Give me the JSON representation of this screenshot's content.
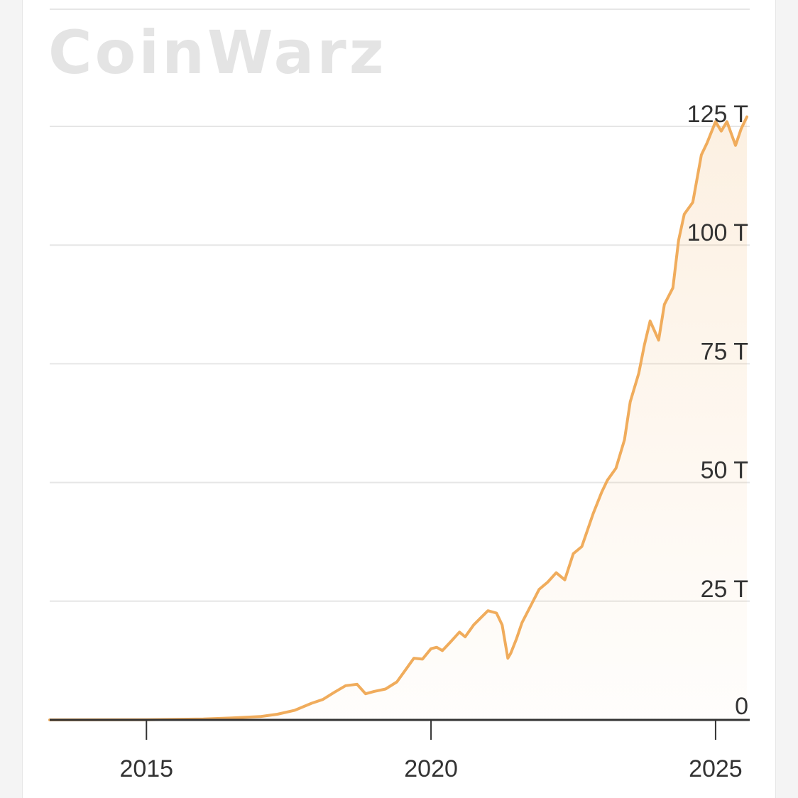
{
  "watermark": "CoinWarz",
  "colors": {
    "line": "#F0AC5C",
    "grid": "#E6E6E6",
    "axis": "#333333",
    "text": "#333333",
    "watermark": "#E4E4E4"
  },
  "chart_data": {
    "type": "area",
    "title": "",
    "xlabel": "",
    "ylabel": "",
    "x_ticks": [
      "2015",
      "2020",
      "2025"
    ],
    "x_tick_values": [
      2015,
      2020,
      2025
    ],
    "y_ticks": [
      "0",
      "25 T",
      "50 T",
      "75 T",
      "100 T",
      "125 T"
    ],
    "y_tick_values": [
      0,
      25,
      50,
      75,
      100,
      125
    ],
    "y_unit": "T",
    "xlim": [
      2013.3,
      2025.6
    ],
    "ylim": [
      0,
      125
    ],
    "grid": true,
    "legend": "none",
    "series": [
      {
        "x": [
          2013.3,
          2014.0,
          2015.0,
          2016.0,
          2016.5,
          2017.0,
          2017.3,
          2017.6,
          2017.9,
          2018.1,
          2018.3,
          2018.5,
          2018.7,
          2018.85,
          2019.0,
          2019.2,
          2019.4,
          2019.55,
          2019.7,
          2019.85,
          2020.0,
          2020.1,
          2020.2,
          2020.35,
          2020.5,
          2020.6,
          2020.75,
          2020.9,
          2021.0,
          2021.15,
          2021.25,
          2021.35,
          2021.4,
          2021.5,
          2021.6,
          2021.75,
          2021.9,
          2022.05,
          2022.2,
          2022.35,
          2022.5,
          2022.65,
          2022.85,
          2023.0,
          2023.1,
          2023.25,
          2023.4,
          2023.5,
          2023.65,
          2023.75,
          2023.85,
          2024.0,
          2024.1,
          2024.25,
          2024.35,
          2024.45,
          2024.6,
          2024.75,
          2024.85,
          2025.0,
          2025.1,
          2025.2,
          2025.35,
          2025.45,
          2025.55
        ],
        "y": [
          0.0,
          0.01,
          0.05,
          0.2,
          0.4,
          0.7,
          1.2,
          2.0,
          3.5,
          4.3,
          5.8,
          7.2,
          7.5,
          5.5,
          6.0,
          6.5,
          8.0,
          10.5,
          13.0,
          12.8,
          15.0,
          15.3,
          14.6,
          16.5,
          18.5,
          17.5,
          20.0,
          21.8,
          23.0,
          22.5,
          20.0,
          13.0,
          14.0,
          17.0,
          20.5,
          24.0,
          27.5,
          29.0,
          31.0,
          29.5,
          35.0,
          36.5,
          43.5,
          48.0,
          50.5,
          53.0,
          59.0,
          67.0,
          73.0,
          79.0,
          84.0,
          80.0,
          87.5,
          91.0,
          101.0,
          106.5,
          109.0,
          119.0,
          121.5,
          126.0,
          124.0,
          126.0,
          121.0,
          124.5,
          127.0
        ]
      }
    ]
  }
}
